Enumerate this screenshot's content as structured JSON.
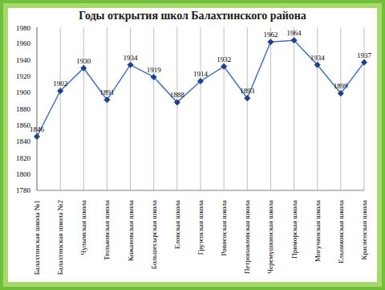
{
  "chart_data": {
    "type": "line",
    "title": "Годы открытия школ Балахтинского района",
    "categories": [
      "Балахтинская школа №1",
      "Балахтинская школа №2",
      "Чулымская школа",
      "Тюльковская школа",
      "Кожановская школа",
      "Большесырская школа",
      "Еловская школа",
      "Грузенская школа",
      "Ровненская школа",
      "Петропавловская школа",
      "Черемушкинская школа",
      "Приморская школа",
      "Могучинская школа",
      "Ельниковская школа",
      "Красненская школа"
    ],
    "values": [
      1846,
      1902,
      1930,
      1891,
      1934,
      1919,
      1888,
      1914,
      1932,
      1893,
      1962,
      1964,
      1934,
      1899,
      1937
    ],
    "color": "#4472c4",
    "marker": "diamond",
    "ylim": [
      1780,
      1980
    ],
    "yticks": [
      1780,
      1800,
      1820,
      1840,
      1860,
      1880,
      1900,
      1920,
      1940,
      1960,
      1980
    ],
    "grid": true,
    "data_labels": true
  }
}
